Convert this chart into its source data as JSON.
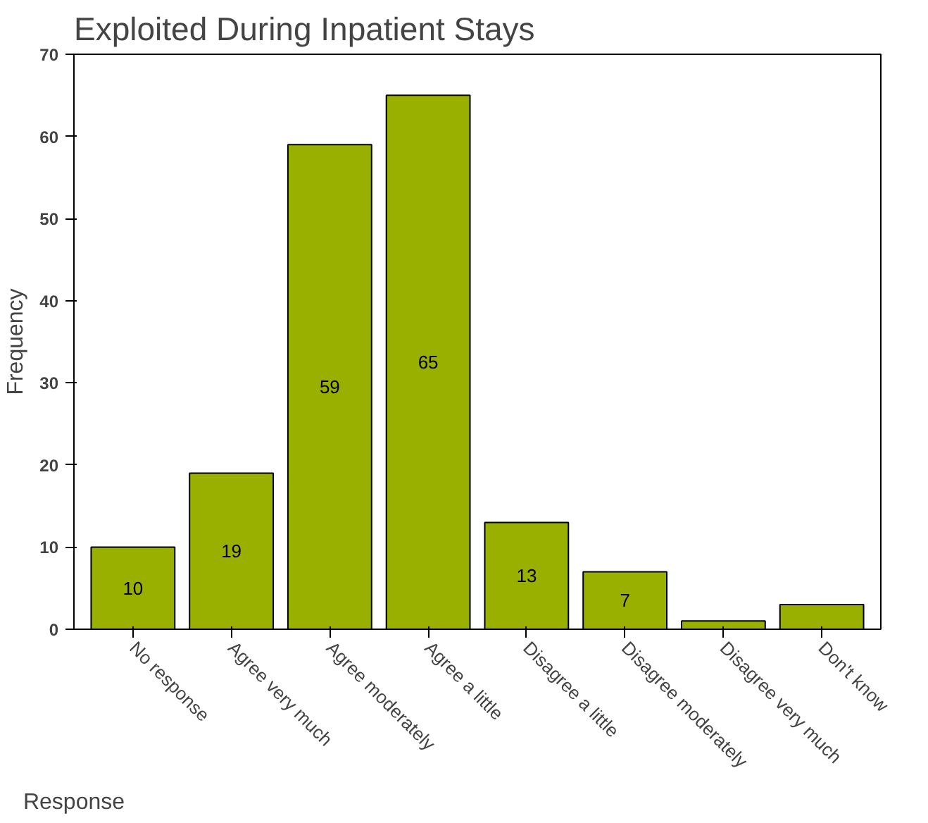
{
  "chart_data": {
    "type": "bar",
    "title": "Exploited During Inpatient Stays",
    "xlabel": "Response",
    "ylabel": "Frequency",
    "categories": [
      "No response",
      "Agree very much",
      "Agree moderately",
      "Agree a little",
      "Disagree a little",
      "Disagree moderately",
      "Disagree very much",
      "Don't know"
    ],
    "values": [
      10,
      19,
      59,
      65,
      13,
      7,
      1,
      3
    ],
    "value_labels": [
      "10",
      "19",
      "59",
      "65",
      "13",
      "7",
      null,
      null
    ],
    "color": "#99b000",
    "ylim": [
      0,
      70
    ],
    "yticks": [
      0,
      10,
      20,
      30,
      40,
      50,
      60,
      70
    ],
    "grid": false
  }
}
